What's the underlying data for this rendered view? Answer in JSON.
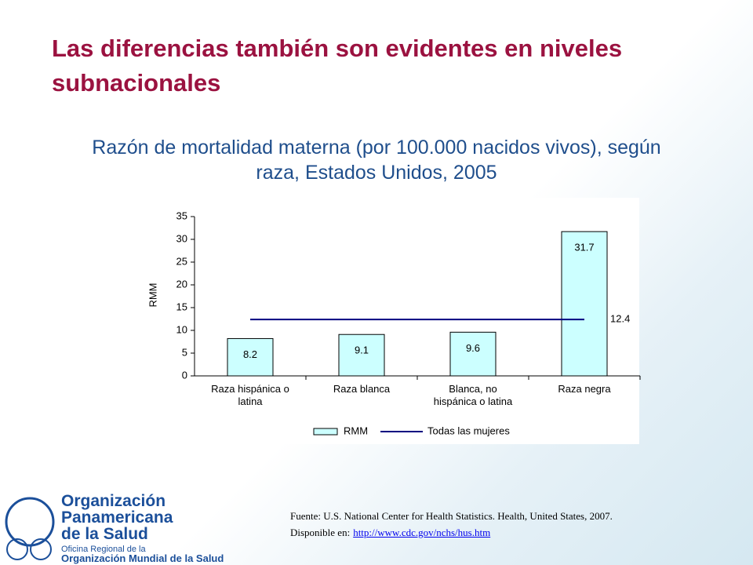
{
  "slide": {
    "title": "Las diferencias también son evidentes en niveles subnacionales"
  },
  "chart_data": {
    "type": "bar",
    "title": "Razón de mortalidad materna (por 100.000 nacidos vivos), según raza, Estados Unidos, 2005",
    "ylabel": "RMM",
    "categories": [
      "Raza hispánica o latina",
      "Raza blanca",
      "Blanca, no hispánica o latina",
      "Raza negra"
    ],
    "series": [
      {
        "name": "RMM",
        "type": "bar",
        "color": "#ccffff",
        "values": [
          8.2,
          9.1,
          9.6,
          31.7
        ]
      },
      {
        "name": "Todas las mujeres",
        "type": "line",
        "color": "#000080",
        "values": [
          12.4,
          12.4,
          12.4,
          12.4
        ]
      }
    ],
    "ylim": [
      0,
      35
    ],
    "yticks": [
      0,
      5,
      10,
      15,
      20,
      25,
      30,
      35
    ],
    "grid": false,
    "legend": "bottom"
  },
  "source": {
    "text": "Fuente: U.S. National Center for Health Statistics. Health, United States, 2007.",
    "prefix": "Disponible en:",
    "link": "http://www.cdc.gov/nchs/hus.htm"
  },
  "logo": {
    "line1": "Organización",
    "line2": "Panamericana",
    "line3": "de la Salud",
    "line4": "Oficina Regional de la",
    "line5": "Organización Mundial de la Salud"
  }
}
